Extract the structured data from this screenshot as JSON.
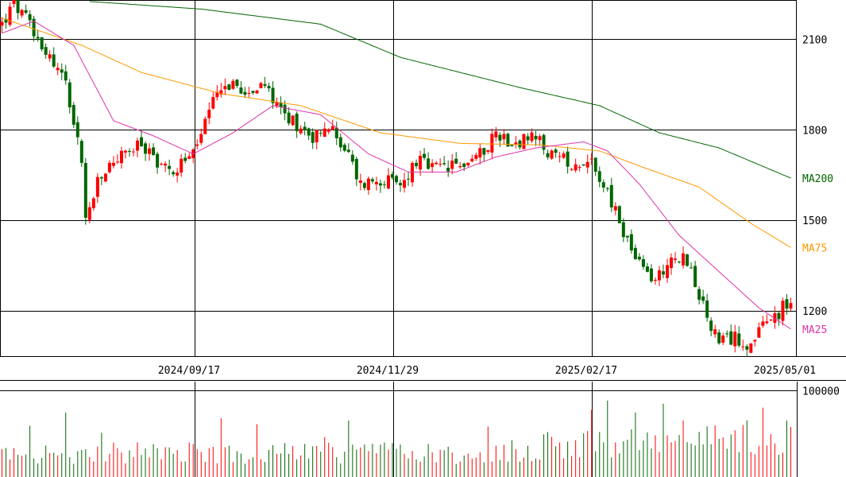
{
  "chart_data": [
    {
      "type": "candlestick",
      "yticks": [
        2100,
        1800,
        1500,
        1200
      ],
      "ylim": [
        1050,
        2230
      ],
      "xlabels": [
        "2024/09/17",
        "2024/11/29",
        "2025/02/17",
        "2025/05/01"
      ],
      "colors": {
        "up": "#ff0000",
        "down": "#006600",
        "ma25": "#dd33aa",
        "ma75": "#ff9900",
        "ma200": "#006600",
        "grid": "#000000"
      },
      "ma_labels": {
        "ma200": "MA200",
        "ma75": "MA75",
        "ma25": "MA25"
      },
      "key_points": [
        {
          "day": 0,
          "close": 2150
        },
        {
          "day": 3,
          "close": 2215
        },
        {
          "day": 8,
          "close": 2130
        },
        {
          "day": 12,
          "close": 2040
        },
        {
          "day": 16,
          "close": 1960
        },
        {
          "day": 20,
          "close": 1700
        },
        {
          "day": 21,
          "close": 1500
        },
        {
          "day": 24,
          "close": 1620
        },
        {
          "day": 28,
          "close": 1700
        },
        {
          "day": 35,
          "close": 1750
        },
        {
          "day": 42,
          "close": 1660
        },
        {
          "day": 48,
          "close": 1720
        },
        {
          "day": 55,
          "close": 1950
        },
        {
          "day": 60,
          "close": 1940
        },
        {
          "day": 67,
          "close": 1930
        },
        {
          "day": 72,
          "close": 1840
        },
        {
          "day": 78,
          "close": 1780
        },
        {
          "day": 82,
          "close": 1810
        },
        {
          "day": 86,
          "close": 1740
        },
        {
          "day": 90,
          "close": 1620
        },
        {
          "day": 95,
          "close": 1640
        },
        {
          "day": 100,
          "close": 1610
        },
        {
          "day": 104,
          "close": 1700
        },
        {
          "day": 108,
          "close": 1670
        },
        {
          "day": 115,
          "close": 1680
        },
        {
          "day": 120,
          "close": 1720
        },
        {
          "day": 124,
          "close": 1790
        },
        {
          "day": 128,
          "close": 1760
        },
        {
          "day": 134,
          "close": 1770
        },
        {
          "day": 138,
          "close": 1710
        },
        {
          "day": 144,
          "close": 1690
        },
        {
          "day": 148,
          "close": 1700
        },
        {
          "day": 152,
          "close": 1590
        },
        {
          "day": 156,
          "close": 1460
        },
        {
          "day": 160,
          "close": 1350
        },
        {
          "day": 164,
          "close": 1300
        },
        {
          "day": 168,
          "close": 1380
        },
        {
          "day": 172,
          "close": 1370
        },
        {
          "day": 176,
          "close": 1210
        },
        {
          "day": 180,
          "close": 1090
        },
        {
          "day": 184,
          "close": 1110
        },
        {
          "day": 188,
          "close": 1090
        },
        {
          "day": 192,
          "close": 1160
        },
        {
          "day": 196,
          "close": 1210
        },
        {
          "day": 198,
          "close": 1230
        }
      ],
      "ma25_points": [
        {
          "day": 0,
          "value": 2120
        },
        {
          "day": 8,
          "value": 2160
        },
        {
          "day": 18,
          "value": 2080
        },
        {
          "day": 28,
          "value": 1830
        },
        {
          "day": 38,
          "value": 1780
        },
        {
          "day": 48,
          "value": 1720
        },
        {
          "day": 58,
          "value": 1790
        },
        {
          "day": 68,
          "value": 1880
        },
        {
          "day": 80,
          "value": 1850
        },
        {
          "day": 92,
          "value": 1720
        },
        {
          "day": 102,
          "value": 1660
        },
        {
          "day": 114,
          "value": 1660
        },
        {
          "day": 124,
          "value": 1710
        },
        {
          "day": 134,
          "value": 1740
        },
        {
          "day": 146,
          "value": 1760
        },
        {
          "day": 152,
          "value": 1730
        },
        {
          "day": 160,
          "value": 1620
        },
        {
          "day": 170,
          "value": 1450
        },
        {
          "day": 180,
          "value": 1330
        },
        {
          "day": 190,
          "value": 1210
        },
        {
          "day": 198,
          "value": 1140
        }
      ],
      "ma75_points": [
        {
          "day": 0,
          "value": 2170
        },
        {
          "day": 20,
          "value": 2080
        },
        {
          "day": 35,
          "value": 1990
        },
        {
          "day": 55,
          "value": 1920
        },
        {
          "day": 75,
          "value": 1880
        },
        {
          "day": 95,
          "value": 1790
        },
        {
          "day": 115,
          "value": 1755
        },
        {
          "day": 135,
          "value": 1750
        },
        {
          "day": 150,
          "value": 1730
        },
        {
          "day": 160,
          "value": 1680
        },
        {
          "day": 175,
          "value": 1610
        },
        {
          "day": 188,
          "value": 1490
        },
        {
          "day": 198,
          "value": 1410
        }
      ],
      "ma200_points": [
        {
          "day": 22,
          "value": 2225
        },
        {
          "day": 50,
          "value": 2200
        },
        {
          "day": 80,
          "value": 2150
        },
        {
          "day": 100,
          "value": 2040
        },
        {
          "day": 130,
          "value": 1940
        },
        {
          "day": 150,
          "value": 1880
        },
        {
          "day": 165,
          "value": 1790
        },
        {
          "day": 180,
          "value": 1740
        },
        {
          "day": 198,
          "value": 1640
        }
      ],
      "total_days": 200
    },
    {
      "type": "bar",
      "yticks": [
        100000
      ],
      "ylim": [
        0,
        110000
      ],
      "colors": {
        "up": "#ff0000",
        "down": "#006600"
      }
    }
  ]
}
